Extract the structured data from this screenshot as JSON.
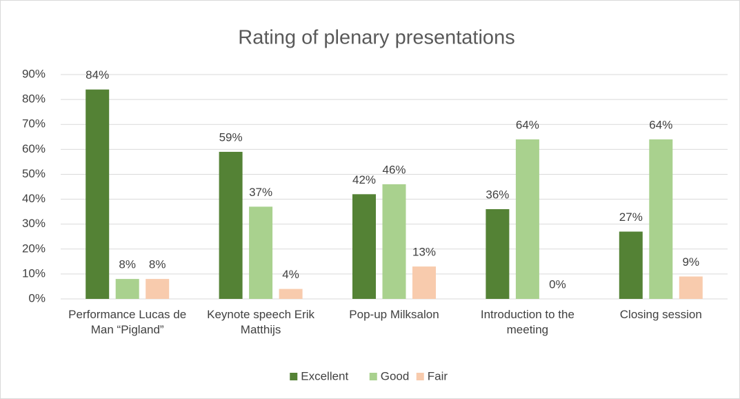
{
  "chart_data": {
    "type": "bar",
    "title": "Rating of plenary presentations",
    "categories": [
      "Performance Lucas de Man “Pigland”",
      "Keynote speech Erik Matthijs",
      "Pop-up Milksalon",
      "Introduction to the meeting",
      "Closing session"
    ],
    "series": [
      {
        "name": "Excellent",
        "color": "#548235",
        "values": [
          84,
          59,
          42,
          36,
          27
        ],
        "value_labels": [
          "84%",
          "59%",
          "42%",
          "36%",
          "27%"
        ]
      },
      {
        "name": "Good",
        "color": "#a9d18e",
        "values": [
          8,
          37,
          46,
          64,
          64
        ],
        "value_labels": [
          "8%",
          "37%",
          "46%",
          "64%",
          "64%"
        ]
      },
      {
        "name": "Fair",
        "color": "#f8cbad",
        "values": [
          8,
          4,
          13,
          0,
          9
        ],
        "value_labels": [
          "8%",
          "4%",
          "13%",
          "0%",
          "9%"
        ]
      }
    ],
    "ylim": [
      0,
      90
    ],
    "yticks": [
      {
        "value": 0,
        "label": "0%"
      },
      {
        "value": 10,
        "label": "10%"
      },
      {
        "value": 20,
        "label": "20%"
      },
      {
        "value": 30,
        "label": "30%"
      },
      {
        "value": 40,
        "label": "40%"
      },
      {
        "value": 50,
        "label": "50%"
      },
      {
        "value": 60,
        "label": "60%"
      },
      {
        "value": 70,
        "label": "70%"
      },
      {
        "value": 80,
        "label": "80%"
      },
      {
        "value": 90,
        "label": "90%"
      }
    ],
    "grid": true,
    "legend": "bottom"
  }
}
